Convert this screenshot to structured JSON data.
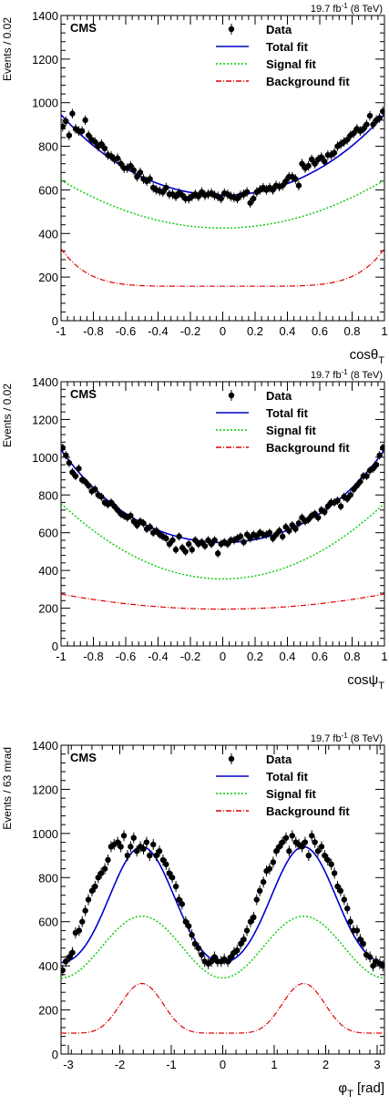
{
  "figure": {
    "lumi": "19.7 fb",
    "lumi_sup": "-1",
    "lumi_tail": " (8 TeV)"
  },
  "chart_data": [
    {
      "type": "scatter",
      "experiment": "CMS",
      "xlabel": "cosθ",
      "xlabel_sub": "T",
      "ylabel": "Events / 0.02",
      "xlim": [
        -1,
        1
      ],
      "ylim": [
        0,
        1400
      ],
      "xticks": [
        -1,
        -0.8,
        -0.6,
        -0.4,
        -0.2,
        0,
        0.2,
        0.4,
        0.6,
        0.8,
        1
      ],
      "xticklabels": [
        "-1",
        "-0.8",
        "-0.6",
        "-0.4",
        "-0.2",
        "0",
        "0.2",
        "0.4",
        "0.6",
        "0.8",
        "1"
      ],
      "yticks": [
        0,
        200,
        400,
        600,
        800,
        1000,
        1200,
        1400
      ],
      "yticklabels": [
        "0",
        "200",
        "400",
        "600",
        "800",
        "1000",
        "1200",
        "1400"
      ],
      "legend": [
        {
          "label": "Data",
          "style": "marker"
        },
        {
          "label": "Total fit",
          "style": "solid",
          "color": "#0000cc"
        },
        {
          "label": "Signal fit",
          "style": "dotted",
          "color": "#00cc00"
        },
        {
          "label": "Background fit",
          "style": "dashdot",
          "color": "#dd0000"
        }
      ],
      "data": {
        "x": [
          -0.99,
          -0.97,
          -0.95,
          -0.93,
          -0.91,
          -0.89,
          -0.87,
          -0.85,
          -0.83,
          -0.81,
          -0.79,
          -0.77,
          -0.75,
          -0.73,
          -0.71,
          -0.69,
          -0.67,
          -0.65,
          -0.63,
          -0.61,
          -0.59,
          -0.57,
          -0.55,
          -0.53,
          -0.51,
          -0.49,
          -0.47,
          -0.45,
          -0.43,
          -0.41,
          -0.39,
          -0.37,
          -0.35,
          -0.33,
          -0.31,
          -0.29,
          -0.27,
          -0.25,
          -0.23,
          -0.21,
          -0.19,
          -0.17,
          -0.15,
          -0.13,
          -0.11,
          -0.09,
          -0.07,
          -0.05,
          -0.03,
          -0.01,
          0.01,
          0.03,
          0.05,
          0.07,
          0.09,
          0.11,
          0.13,
          0.15,
          0.17,
          0.19,
          0.21,
          0.23,
          0.25,
          0.27,
          0.29,
          0.31,
          0.33,
          0.35,
          0.37,
          0.39,
          0.41,
          0.43,
          0.45,
          0.47,
          0.49,
          0.51,
          0.53,
          0.55,
          0.57,
          0.59,
          0.61,
          0.63,
          0.65,
          0.67,
          0.69,
          0.71,
          0.73,
          0.75,
          0.77,
          0.79,
          0.81,
          0.83,
          0.85,
          0.87,
          0.89,
          0.91,
          0.93,
          0.95,
          0.97,
          0.99
        ],
        "y": [
          890,
          915,
          850,
          950,
          880,
          870,
          870,
          920,
          850,
          830,
          820,
          800,
          810,
          790,
          760,
          755,
          740,
          745,
          720,
          700,
          700,
          710,
          690,
          660,
          680,
          650,
          640,
          650,
          610,
          600,
          595,
          590,
          610,
          580,
          580,
          570,
          585,
          575,
          560,
          560,
          570,
          580,
          570,
          590,
          575,
          580,
          585,
          575,
          570,
          560,
          585,
          580,
          570,
          565,
          560,
          575,
          580,
          590,
          540,
          560,
          590,
          600,
          610,
          600,
          610,
          600,
          620,
          615,
          620,
          640,
          660,
          660,
          650,
          620,
          720,
          700,
          710,
          740,
          720,
          740,
          750,
          730,
          760,
          760,
          770,
          800,
          810,
          820,
          830,
          850,
          860,
          880,
          870,
          880,
          900,
          940,
          900,
          920,
          930,
          960
        ],
        "err": 22
      },
      "fits": {
        "total": {
          "form": "a+b*x^2+c*x^4",
          "a": 575,
          "b": 330,
          "c": 40
        },
        "signal": {
          "form": "a+b*x^2",
          "a": 425,
          "b": 220
        },
        "background": {
          "form": "plateau",
          "low": 158,
          "high": 330
        }
      }
    },
    {
      "type": "scatter",
      "experiment": "CMS",
      "xlabel": "cosψ",
      "xlabel_sub": "T",
      "ylabel": "Events / 0.02",
      "xlim": [
        -1,
        1
      ],
      "ylim": [
        0,
        1400
      ],
      "xticks": [
        -1,
        -0.8,
        -0.6,
        -0.4,
        -0.2,
        0,
        0.2,
        0.4,
        0.6,
        0.8,
        1
      ],
      "xticklabels": [
        "-1",
        "-0.8",
        "-0.6",
        "-0.4",
        "-0.2",
        "0",
        "0.2",
        "0.4",
        "0.6",
        "0.8",
        "1"
      ],
      "yticks": [
        0,
        200,
        400,
        600,
        800,
        1000,
        1200,
        1400
      ],
      "yticklabels": [
        "0",
        "200",
        "400",
        "600",
        "800",
        "1000",
        "1200",
        "1400"
      ],
      "legend": [
        {
          "label": "Data",
          "style": "marker"
        },
        {
          "label": "Total fit",
          "style": "solid",
          "color": "#0000cc"
        },
        {
          "label": "Signal fit",
          "style": "dotted",
          "color": "#00cc00"
        },
        {
          "label": "Background fit",
          "style": "dashdot",
          "color": "#dd0000"
        }
      ],
      "data": {
        "x": [
          -0.99,
          -0.97,
          -0.95,
          -0.93,
          -0.91,
          -0.89,
          -0.87,
          -0.85,
          -0.83,
          -0.81,
          -0.79,
          -0.77,
          -0.75,
          -0.73,
          -0.71,
          -0.69,
          -0.67,
          -0.65,
          -0.63,
          -0.61,
          -0.59,
          -0.57,
          -0.55,
          -0.53,
          -0.51,
          -0.49,
          -0.47,
          -0.45,
          -0.43,
          -0.41,
          -0.39,
          -0.37,
          -0.35,
          -0.33,
          -0.31,
          -0.29,
          -0.27,
          -0.25,
          -0.23,
          -0.21,
          -0.19,
          -0.17,
          -0.15,
          -0.13,
          -0.11,
          -0.09,
          -0.07,
          -0.05,
          -0.03,
          -0.01,
          0.01,
          0.03,
          0.05,
          0.07,
          0.09,
          0.11,
          0.13,
          0.15,
          0.17,
          0.19,
          0.21,
          0.23,
          0.25,
          0.27,
          0.29,
          0.31,
          0.33,
          0.35,
          0.37,
          0.39,
          0.41,
          0.43,
          0.45,
          0.47,
          0.49,
          0.51,
          0.53,
          0.55,
          0.57,
          0.59,
          0.61,
          0.63,
          0.65,
          0.67,
          0.69,
          0.71,
          0.73,
          0.75,
          0.77,
          0.79,
          0.81,
          0.83,
          0.85,
          0.87,
          0.89,
          0.91,
          0.93,
          0.95,
          0.97,
          0.99
        ],
        "y": [
          1050,
          1010,
          970,
          920,
          900,
          940,
          880,
          870,
          850,
          820,
          830,
          800,
          790,
          760,
          750,
          760,
          740,
          720,
          700,
          690,
          680,
          690,
          660,
          640,
          660,
          650,
          620,
          630,
          600,
          610,
          590,
          580,
          570,
          540,
          560,
          510,
          580,
          520,
          500,
          540,
          510,
          560,
          540,
          550,
          530,
          560,
          540,
          560,
          490,
          540,
          550,
          540,
          560,
          560,
          570,
          580,
          550,
          590,
          570,
          590,
          580,
          600,
          590,
          590,
          600,
          570,
          590,
          610,
          580,
          630,
          610,
          640,
          620,
          650,
          680,
          660,
          670,
          690,
          700,
          680,
          720,
          710,
          740,
          760,
          760,
          770,
          740,
          790,
          780,
          800,
          830,
          850,
          870,
          900,
          900,
          930,
          940,
          960,
          1010,
          1050
        ],
        "err": 22
      },
      "fits": {
        "total": {
          "form": "a+b*x^2+c*x^4",
          "a": 548,
          "b": 390,
          "c": 100
        },
        "signal": {
          "form": "a+b*x^2",
          "a": 355,
          "b": 400
        },
        "background": {
          "form": "a+b*x^2",
          "a": 195,
          "b": 80
        }
      }
    },
    {
      "type": "scatter",
      "experiment": "CMS",
      "xlabel": "φ",
      "xlabel_sub": "T",
      "xlabel_tail": " [rad]",
      "ylabel": "Events / 63 mrad",
      "xlim": [
        -3.1416,
        3.1416
      ],
      "ylim": [
        0,
        1400
      ],
      "xticks": [
        -3,
        -2,
        -1,
        0,
        1,
        2,
        3
      ],
      "xticklabels": [
        "-3",
        "-2",
        "-1",
        "0",
        "1",
        "2",
        "3"
      ],
      "yticks": [
        0,
        200,
        400,
        600,
        800,
        1000,
        1200,
        1400
      ],
      "yticklabels": [
        "0",
        "200",
        "400",
        "600",
        "800",
        "1000",
        "1200",
        "1400"
      ],
      "legend": [
        {
          "label": "Data",
          "style": "marker"
        },
        {
          "label": "Total fit",
          "style": "solid",
          "color": "#0000cc"
        },
        {
          "label": "Signal fit",
          "style": "dotted",
          "color": "#00cc00"
        },
        {
          "label": "Background fit",
          "style": "dashdot",
          "color": "#dd0000"
        }
      ],
      "data": {
        "x": [
          -3.11,
          -3.05,
          -2.98,
          -2.92,
          -2.86,
          -2.79,
          -2.73,
          -2.67,
          -2.61,
          -2.54,
          -2.48,
          -2.42,
          -2.36,
          -2.29,
          -2.23,
          -2.17,
          -2.11,
          -2.04,
          -1.98,
          -1.92,
          -1.85,
          -1.79,
          -1.73,
          -1.67,
          -1.6,
          -1.54,
          -1.48,
          -1.42,
          -1.35,
          -1.29,
          -1.23,
          -1.16,
          -1.1,
          -1.04,
          -0.98,
          -0.91,
          -0.85,
          -0.79,
          -0.72,
          -0.66,
          -0.6,
          -0.54,
          -0.47,
          -0.41,
          -0.35,
          -0.28,
          -0.22,
          -0.16,
          -0.1,
          -0.03,
          0.03,
          0.1,
          0.16,
          0.22,
          0.28,
          0.35,
          0.41,
          0.47,
          0.54,
          0.6,
          0.66,
          0.72,
          0.79,
          0.85,
          0.91,
          0.98,
          1.04,
          1.1,
          1.16,
          1.23,
          1.29,
          1.35,
          1.42,
          1.48,
          1.54,
          1.6,
          1.67,
          1.73,
          1.79,
          1.85,
          1.92,
          1.98,
          2.04,
          2.11,
          2.17,
          2.23,
          2.29,
          2.36,
          2.42,
          2.48,
          2.54,
          2.61,
          2.67,
          2.73,
          2.79,
          2.86,
          2.92,
          2.98,
          3.05,
          3.11
        ],
        "y": [
          380,
          420,
          440,
          460,
          550,
          560,
          600,
          650,
          700,
          740,
          760,
          800,
          820,
          840,
          880,
          940,
          950,
          960,
          940,
          990,
          900,
          940,
          980,
          920,
          940,
          930,
          960,
          900,
          950,
          900,
          920,
          880,
          860,
          820,
          800,
          760,
          700,
          680,
          600,
          580,
          540,
          500,
          480,
          450,
          420,
          410,
          420,
          440,
          420,
          420,
          430,
          420,
          440,
          460,
          470,
          500,
          520,
          560,
          600,
          620,
          700,
          740,
          780,
          830,
          840,
          870,
          920,
          940,
          960,
          980,
          920,
          990,
          960,
          950,
          940,
          960,
          900,
          990,
          960,
          920,
          940,
          900,
          880,
          860,
          820,
          760,
          740,
          700,
          660,
          600,
          560,
          560,
          520,
          500,
          450,
          440,
          400,
          420,
          410,
          400
        ],
        "err": 25
      },
      "fits": {
        "total": {
          "form": "a+b*sin^2(x)+c*sin^4(x)",
          "a": 415,
          "b": 330,
          "c": 195
        },
        "signal": {
          "form": "a+b*sin^2(x)",
          "a": 345,
          "b": 280
        },
        "background": {
          "form": "plateau",
          "low": 95,
          "high": 320
        }
      }
    }
  ]
}
